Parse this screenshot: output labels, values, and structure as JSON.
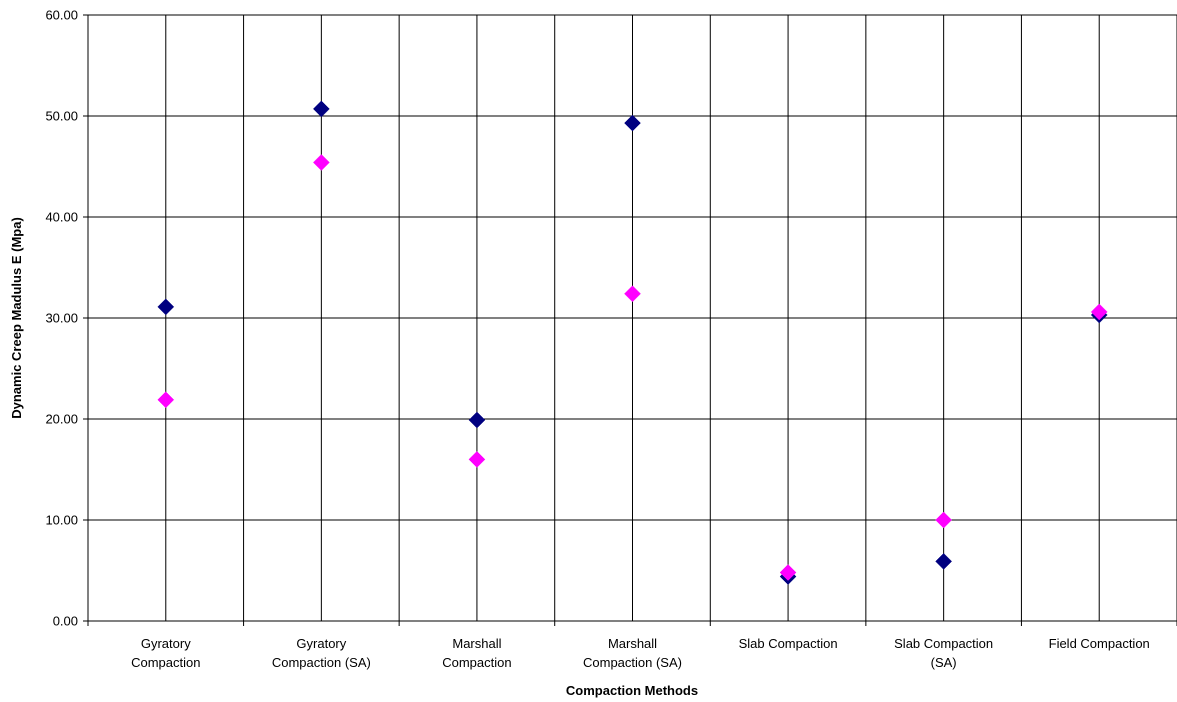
{
  "chart_data": {
    "type": "scatter",
    "title": "",
    "xlabel": "Compaction Methods",
    "ylabel": "Dynamic Creep Madulus E (Mpa)",
    "ylim": [
      0,
      60
    ],
    "y_ticks": [
      "0.00",
      "10.00",
      "20.00",
      "30.00",
      "40.00",
      "50.00",
      "60.00"
    ],
    "categories": [
      [
        "Gyratory",
        "Compaction"
      ],
      [
        "Gyratory",
        "Compaction (SA)"
      ],
      [
        "Marshall",
        "Compaction"
      ],
      [
        "Marshall",
        "Compaction (SA)"
      ],
      [
        "Slab Compaction"
      ],
      [
        "Slab Compaction",
        "(SA)"
      ],
      [
        "Field Compaction"
      ]
    ],
    "grid": true,
    "legend": "none",
    "series": [
      {
        "color": "#000080",
        "marker": "diamond",
        "values": [
          31.1,
          50.7,
          19.9,
          49.3,
          4.4,
          5.9,
          30.3
        ]
      },
      {
        "color": "#ff00ff",
        "marker": "diamond",
        "values": [
          21.9,
          45.4,
          16.0,
          32.4,
          4.8,
          10.0,
          30.6
        ]
      }
    ]
  }
}
